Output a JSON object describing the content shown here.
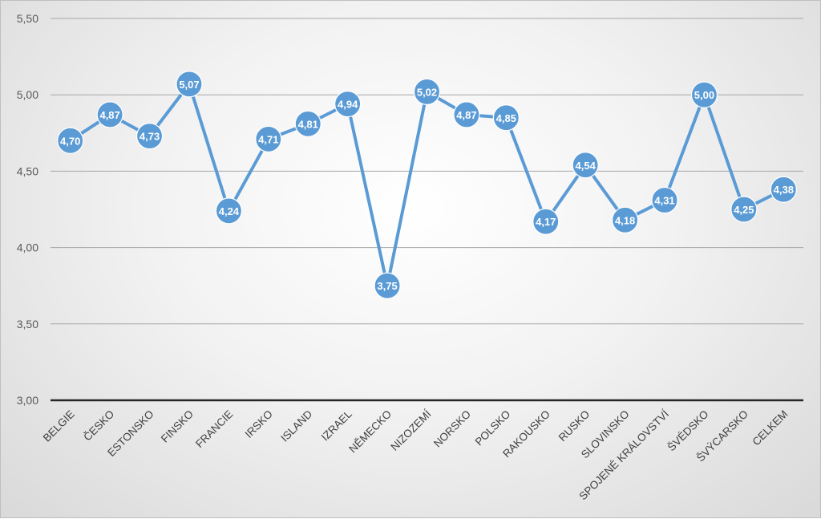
{
  "chart_data": {
    "type": "line",
    "categories": [
      "BELGIE",
      "ČESKO",
      "ESTONSKO",
      "FINSKO",
      "FRANCIE",
      "IRSKO",
      "ISLAND",
      "IZRAEL",
      "NĚMECKO",
      "NIZOZEMÍ",
      "NORSKO",
      "POLSKO",
      "RAKOUSKO",
      "RUSKO",
      "SLOVINSKO",
      "SPOJENÉ KRÁLOVSTVÍ",
      "ŠVÉDSKO",
      "ŠVÝCARSKO",
      "CELKEM"
    ],
    "values": [
      4.7,
      4.87,
      4.73,
      5.07,
      4.24,
      4.71,
      4.81,
      4.94,
      3.75,
      5.02,
      4.87,
      4.85,
      4.17,
      4.54,
      4.18,
      4.31,
      5.0,
      4.25,
      4.38
    ],
    "value_labels": [
      "4,70",
      "4,87",
      "4,73",
      "5,07",
      "4,24",
      "4,71",
      "4,81",
      "4,94",
      "3,75",
      "5,02",
      "4,87",
      "4,85",
      "4,17",
      "4,54",
      "4,18",
      "4,31",
      "5,00",
      "4,25",
      "4,38"
    ],
    "ylim": [
      3.0,
      5.5
    ],
    "y_ticks": [
      3.0,
      3.5,
      4.0,
      4.5,
      5.0,
      5.5
    ],
    "y_tick_labels": [
      "3,00",
      "3,50",
      "4,00",
      "4,50",
      "5,00",
      "5,50"
    ],
    "title": "",
    "xlabel": "",
    "ylabel": "",
    "grid": true,
    "legend": "none",
    "colors": {
      "line": "#5b9bd5",
      "marker": "#5b9bd5",
      "marker_edge": "#ffffff",
      "grid": "#a6a6a6",
      "axis": "#262626"
    }
  }
}
